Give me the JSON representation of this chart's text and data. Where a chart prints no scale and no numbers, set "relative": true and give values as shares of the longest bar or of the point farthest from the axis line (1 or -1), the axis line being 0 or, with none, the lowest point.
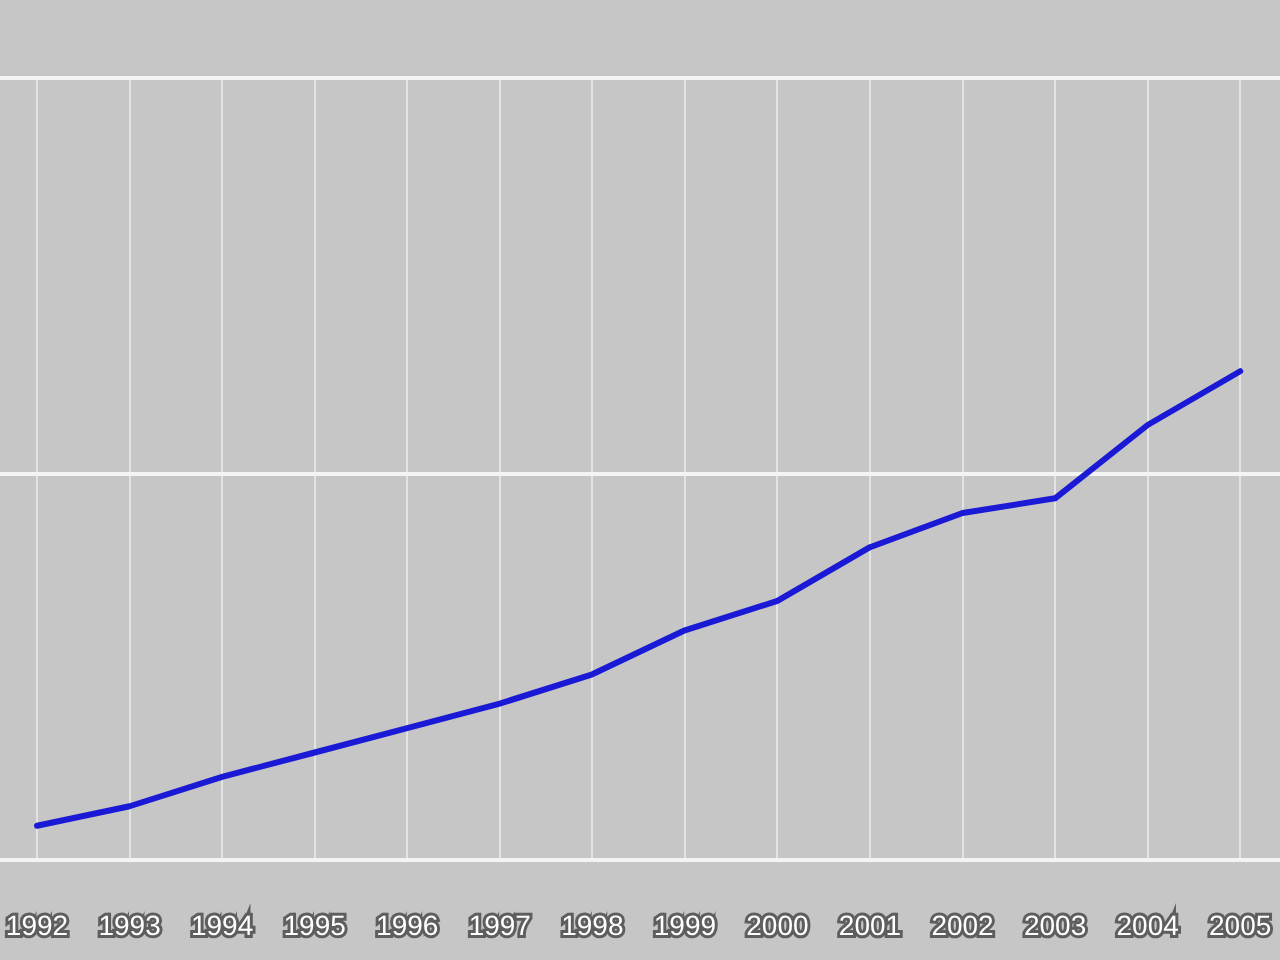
{
  "chart_data": {
    "type": "line",
    "relative": true,
    "x": [
      1992,
      1993,
      1994,
      1995,
      1996,
      1997,
      1998,
      1999,
      2000,
      2001,
      2002,
      2003,
      2004,
      2005
    ],
    "xlim": [
      1991.6,
      2005.43
    ],
    "xticks": [
      1992,
      1993,
      1994,
      1995,
      1996,
      1997,
      1998,
      1999,
      2000,
      2001,
      2002,
      2003,
      2004,
      2005
    ],
    "values": [
      0.07,
      0.11,
      0.17,
      0.22,
      0.27,
      0.32,
      0.38,
      0.47,
      0.53,
      0.64,
      0.71,
      0.74,
      0.89,
      1
    ],
    "color": "#1a1ad6",
    "grid": true,
    "marker": "none",
    "line_style": "solid",
    "ref_lines": [
      {
        "axis": "y",
        "value": 0.79,
        "color": "#f4f4f4"
      }
    ]
  }
}
